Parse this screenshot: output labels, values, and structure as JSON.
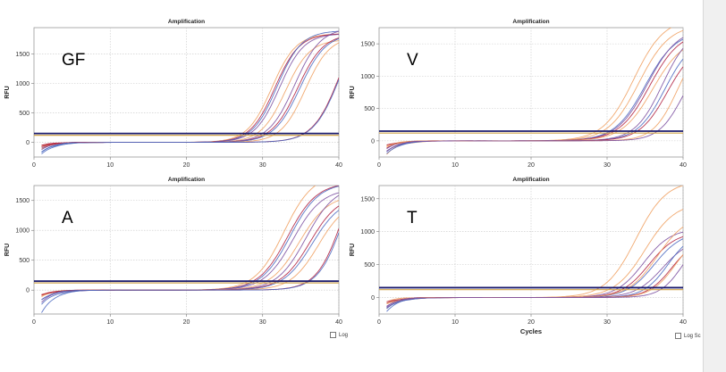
{
  "colors": {
    "threshold_dark": "#1c1c6e",
    "threshold_gold": "#d2a64a",
    "orange": "#f0a060",
    "purple": "#7b4fa0",
    "red": "#b02040",
    "blue": "#4a68c0"
  },
  "chart_data": [
    {
      "type": "line",
      "title": "Amplification",
      "panel_label": "GF",
      "xlabel": "",
      "ylabel": "RFU",
      "xlim": [
        0,
        40
      ],
      "ylim": [
        -250,
        1950
      ],
      "xticks": [
        0,
        10,
        20,
        30,
        40
      ],
      "yticks": [
        0,
        500,
        1000,
        1500
      ],
      "grid": true,
      "thresholds": [
        150,
        120
      ],
      "series": [
        {
          "color": "orange",
          "midpoint": 31.2,
          "plateau": 1850,
          "start": -80,
          "slope": 1.6
        },
        {
          "color": "red",
          "midpoint": 31.6,
          "plateau": 1850,
          "start": -60,
          "slope": 1.6
        },
        {
          "color": "blue",
          "midpoint": 31.9,
          "plateau": 1900,
          "start": -200,
          "slope": 1.6
        },
        {
          "color": "purple",
          "midpoint": 32.2,
          "plateau": 1850,
          "start": -90,
          "slope": 1.6
        },
        {
          "color": "orange",
          "midpoint": 33.0,
          "plateau": 1750,
          "start": -100,
          "slope": 1.6
        },
        {
          "color": "purple",
          "midpoint": 34.2,
          "plateau": 1950,
          "start": -120,
          "slope": 1.7
        },
        {
          "color": "red",
          "midpoint": 34.6,
          "plateau": 1850,
          "start": -60,
          "slope": 1.7
        },
        {
          "color": "blue",
          "midpoint": 34.9,
          "plateau": 1850,
          "start": -180,
          "slope": 1.7
        },
        {
          "color": "orange",
          "midpoint": 35.6,
          "plateau": 1800,
          "start": -80,
          "slope": 1.6
        },
        {
          "color": "red",
          "midpoint": 40.3,
          "plateau": 2400,
          "start": -70,
          "slope": 1.8
        },
        {
          "color": "blue",
          "midpoint": 40.4,
          "plateau": 2400,
          "start": -150,
          "slope": 1.8
        }
      ]
    },
    {
      "type": "line",
      "title": "Amplification",
      "panel_label": "V",
      "xlabel": "",
      "ylabel": "RFU",
      "xlim": [
        0,
        40
      ],
      "ylim": [
        -250,
        1750
      ],
      "xticks": [
        0,
        10,
        20,
        30,
        40
      ],
      "yticks": [
        0,
        500,
        1000,
        1500
      ],
      "grid": true,
      "thresholds": [
        150,
        120
      ],
      "series": [
        {
          "color": "orange",
          "midpoint": 33.5,
          "plateau": 1900,
          "start": -220,
          "slope": 2.0
        },
        {
          "color": "orange",
          "midpoint": 34.2,
          "plateau": 1800,
          "start": -80,
          "slope": 2.0
        },
        {
          "color": "blue",
          "midpoint": 35.0,
          "plateau": 1700,
          "start": -200,
          "slope": 2.0
        },
        {
          "color": "purple",
          "midpoint": 35.3,
          "plateau": 1750,
          "start": -150,
          "slope": 2.0
        },
        {
          "color": "red",
          "midpoint": 35.6,
          "plateau": 1700,
          "start": -100,
          "slope": 2.0
        },
        {
          "color": "orange",
          "midpoint": 36.0,
          "plateau": 1600,
          "start": -90,
          "slope": 2.0
        },
        {
          "color": "purple",
          "midpoint": 37.3,
          "plateau": 1750,
          "start": -130,
          "slope": 1.8
        },
        {
          "color": "blue",
          "midpoint": 37.6,
          "plateau": 1600,
          "start": -180,
          "slope": 1.8
        },
        {
          "color": "red",
          "midpoint": 37.9,
          "plateau": 1500,
          "start": -70,
          "slope": 1.8
        },
        {
          "color": "orange",
          "midpoint": 39.3,
          "plateau": 1600,
          "start": -80,
          "slope": 1.6
        },
        {
          "color": "purple",
          "midpoint": 40.0,
          "plateau": 1400,
          "start": -150,
          "slope": 1.6
        }
      ]
    },
    {
      "type": "line",
      "title": "Amplification",
      "panel_label": "A",
      "xlabel": "",
      "ylabel": "RFU",
      "xlim": [
        0,
        40
      ],
      "ylim": [
        -400,
        1750
      ],
      "xticks": [
        0,
        10,
        20,
        30,
        40
      ],
      "yticks": [
        0,
        500,
        1000,
        1500
      ],
      "grid": true,
      "thresholds": [
        150,
        120
      ],
      "series": [
        {
          "color": "orange",
          "midpoint": 32.8,
          "plateau": 1950,
          "start": -120,
          "slope": 1.9
        },
        {
          "color": "red",
          "midpoint": 33.3,
          "plateau": 1800,
          "start": -100,
          "slope": 1.9
        },
        {
          "color": "blue",
          "midpoint": 33.6,
          "plateau": 1800,
          "start": -380,
          "slope": 1.9
        },
        {
          "color": "purple",
          "midpoint": 34.0,
          "plateau": 1700,
          "start": -150,
          "slope": 1.9
        },
        {
          "color": "orange",
          "midpoint": 34.8,
          "plateau": 1600,
          "start": -80,
          "slope": 1.9
        },
        {
          "color": "purple",
          "midpoint": 35.7,
          "plateau": 1750,
          "start": -200,
          "slope": 1.9
        },
        {
          "color": "red",
          "midpoint": 36.2,
          "plateau": 1600,
          "start": -90,
          "slope": 1.9
        },
        {
          "color": "blue",
          "midpoint": 36.5,
          "plateau": 1550,
          "start": -250,
          "slope": 1.9
        },
        {
          "color": "orange",
          "midpoint": 37.3,
          "plateau": 1500,
          "start": -80,
          "slope": 1.8
        },
        {
          "color": "red",
          "midpoint": 40.6,
          "plateau": 2500,
          "start": -70,
          "slope": 1.7
        },
        {
          "color": "blue",
          "midpoint": 40.8,
          "plateau": 2500,
          "start": -150,
          "slope": 1.7
        }
      ]
    },
    {
      "type": "line",
      "title": "Amplification",
      "panel_label": "T",
      "xlabel": "Cycles",
      "ylabel": "RFU",
      "xlim": [
        0,
        40
      ],
      "ylim": [
        -250,
        1700
      ],
      "xticks": [
        0,
        10,
        20,
        30,
        40
      ],
      "yticks": [
        0,
        500,
        1000,
        1500
      ],
      "grid": true,
      "thresholds": [
        150,
        120
      ],
      "series": [
        {
          "color": "orange",
          "midpoint": 33.8,
          "plateau": 1780,
          "start": -180,
          "slope": 2.0
        },
        {
          "color": "orange",
          "midpoint": 35.0,
          "plateau": 1450,
          "start": -100,
          "slope": 2.0
        },
        {
          "color": "purple",
          "midpoint": 34.8,
          "plateau": 1050,
          "start": -160,
          "slope": 1.8
        },
        {
          "color": "red",
          "midpoint": 35.5,
          "plateau": 1000,
          "start": -80,
          "slope": 1.8
        },
        {
          "color": "blue",
          "midpoint": 36.2,
          "plateau": 1000,
          "start": -200,
          "slope": 1.8
        },
        {
          "color": "orange",
          "midpoint": 36.6,
          "plateau": 1250,
          "start": -60,
          "slope": 1.9
        },
        {
          "color": "purple",
          "midpoint": 37.3,
          "plateau": 900,
          "start": -150,
          "slope": 1.8
        },
        {
          "color": "blue",
          "midpoint": 38.0,
          "plateau": 1000,
          "start": -180,
          "slope": 1.6
        },
        {
          "color": "red",
          "midpoint": 38.5,
          "plateau": 900,
          "start": -70,
          "slope": 1.6
        },
        {
          "color": "orange",
          "midpoint": 39.0,
          "plateau": 1000,
          "start": -90,
          "slope": 1.6
        },
        {
          "color": "purple",
          "midpoint": 40.0,
          "plateau": 1000,
          "start": -120,
          "slope": 1.5
        }
      ]
    }
  ],
  "controls": {
    "log_scale_1": "Log",
    "log_scale_2": "Log Sc"
  }
}
